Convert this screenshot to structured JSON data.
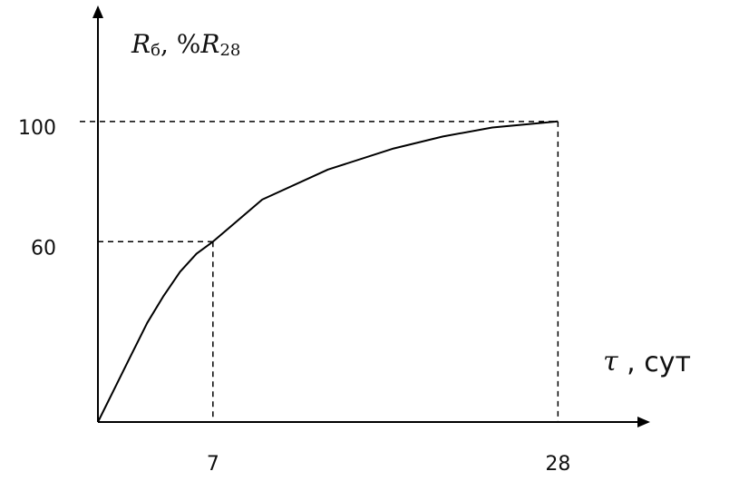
{
  "chart_data": {
    "type": "line",
    "ylabel_parts": [
      "R",
      "б",
      ", %",
      "R",
      "28"
    ],
    "xlabel_parts": [
      "τ",
      " ,  сут"
    ],
    "x": [
      0,
      1,
      2,
      3,
      4,
      5,
      6,
      7,
      10,
      14,
      18,
      21,
      24,
      28
    ],
    "series": [
      {
        "color": "#000000",
        "values": [
          0,
          11,
          22,
          33,
          42,
          50,
          56,
          60,
          74,
          84,
          91,
          95,
          98,
          100
        ]
      }
    ],
    "xlim": [
      0,
      33.5
    ],
    "ylim": [
      0,
      138
    ],
    "xticks": [
      7,
      28
    ],
    "yticks": [
      60,
      100
    ]
  }
}
